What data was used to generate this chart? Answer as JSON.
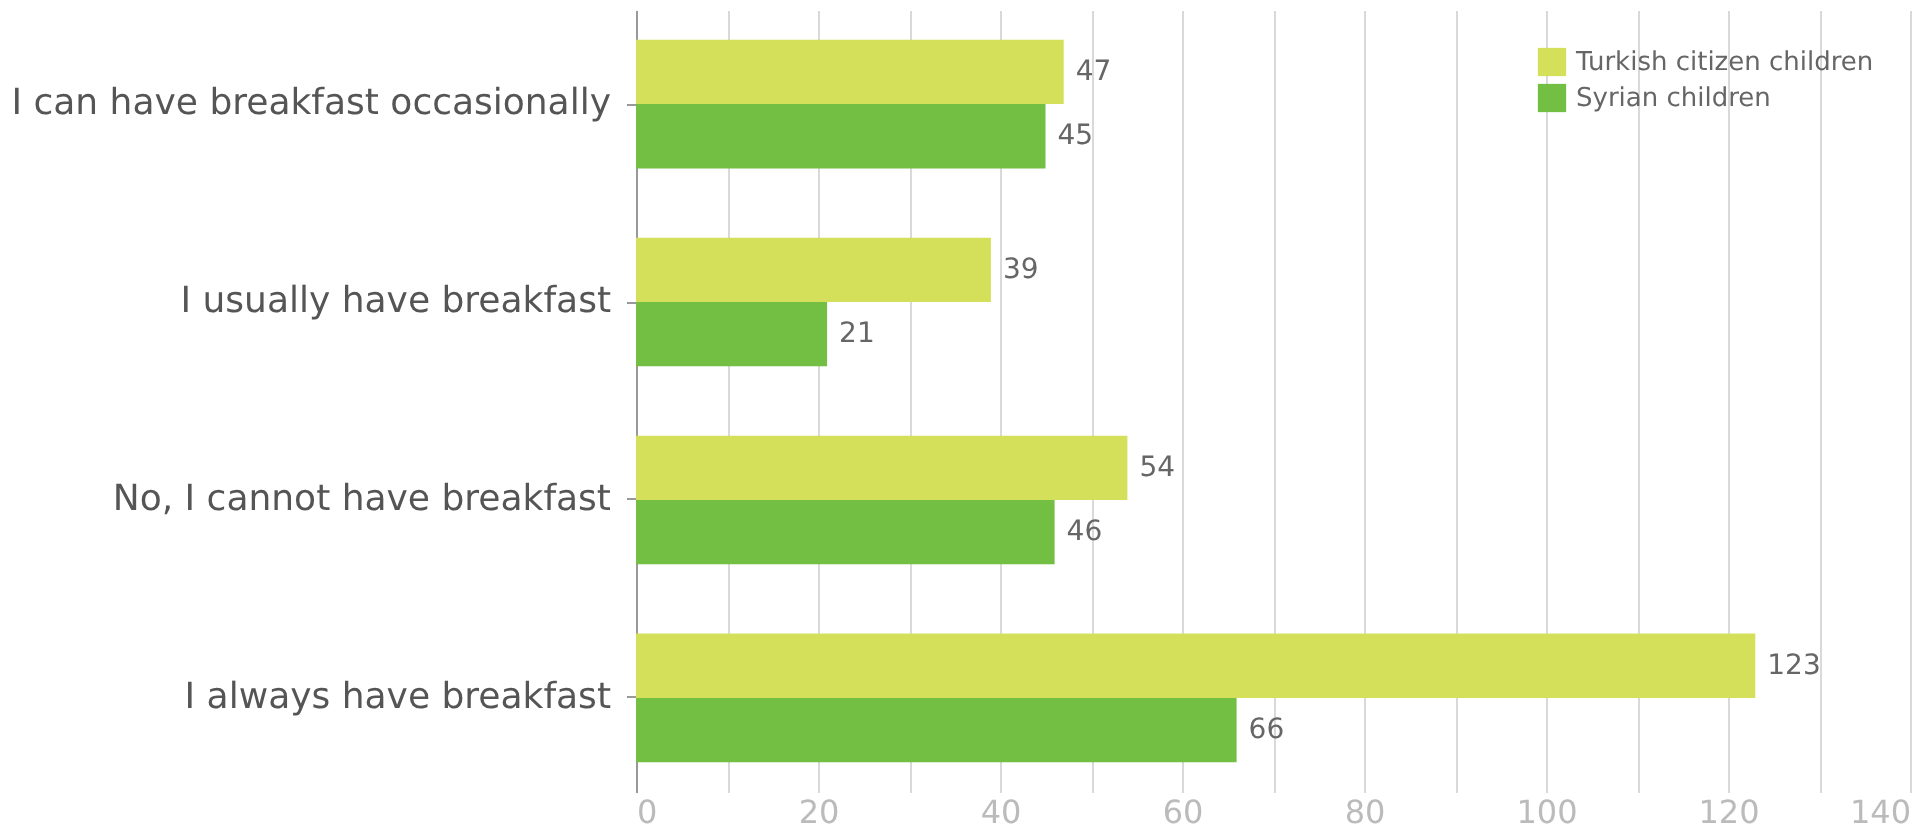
{
  "chart_data": {
    "type": "bar",
    "orientation": "horizontal",
    "categories": [
      "I can have breakfast occasionally",
      "I usually have breakfast",
      "No, I cannot have breakfast",
      "I always have breakfast"
    ],
    "series": [
      {
        "name": "Turkish citizen children",
        "color": "#d4e05a",
        "values": [
          47,
          39,
          54,
          123
        ]
      },
      {
        "name": "Syrian children",
        "color": "#72bf44",
        "values": [
          45,
          21,
          46,
          66
        ]
      }
    ],
    "xlim": [
      0,
      140
    ],
    "xticks": [
      0,
      {
        "value": 10,
        "label": null
      },
      20,
      {
        "value": 30,
        "label": null
      },
      40,
      {
        "value": 50,
        "label": null
      },
      60,
      {
        "value": 70,
        "label": null
      },
      80,
      {
        "value": 90,
        "label": null
      },
      100,
      {
        "value": 110,
        "label": null
      },
      120,
      {
        "value": 130,
        "label": null
      },
      140
    ],
    "grid": "x",
    "legend": "top right",
    "data_labels": true
  }
}
